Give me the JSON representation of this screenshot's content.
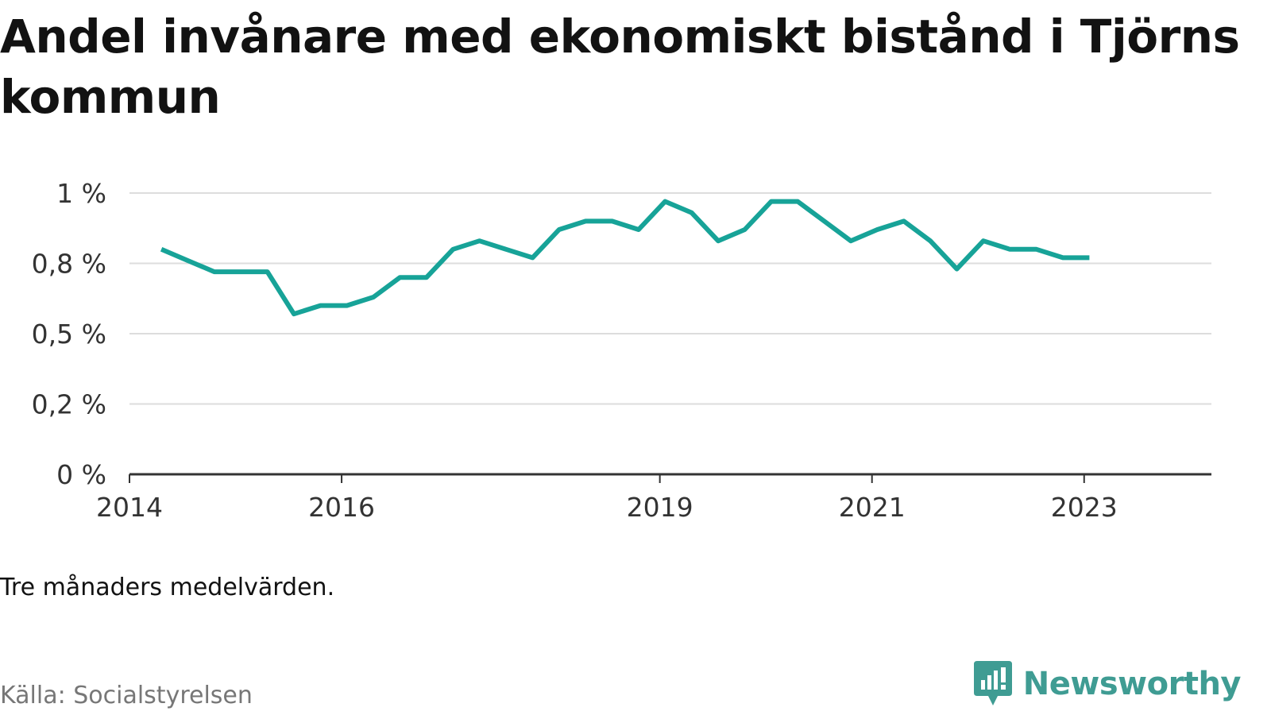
{
  "title": "Andel invånare med ekonomiskt bistånd i Tjörns kommun",
  "note": "Tre månaders medelvärden.",
  "source": "Källa: Socialstyrelsen",
  "brand": {
    "name": "Newsworthy",
    "color": "#3f9c93"
  },
  "colors": {
    "line": "#17a398",
    "grid": "#dddddd",
    "axis": "#333333"
  },
  "chart_data": {
    "type": "line",
    "title": "Andel invånare med ekonomiskt bistånd i Tjörns kommun",
    "xlabel": "",
    "ylabel": "",
    "grid": true,
    "legend": "none",
    "xlim": [
      2014.0,
      2024.2
    ],
    "ylim": [
      0,
      1.0
    ],
    "x_ticks": [
      {
        "value": 2014,
        "label": "2014"
      },
      {
        "value": 2016,
        "label": "2016"
      },
      {
        "value": 2019,
        "label": "2019"
      },
      {
        "value": 2021,
        "label": "2021"
      },
      {
        "value": 2023,
        "label": "2023"
      }
    ],
    "y_ticks": [
      {
        "value": 0,
        "label": "0 %"
      },
      {
        "value": 0.25,
        "label": "0,2 %"
      },
      {
        "value": 0.5,
        "label": "0,5 %"
      },
      {
        "value": 0.75,
        "label": "0,8 %"
      },
      {
        "value": 1.0,
        "label": "1 %"
      }
    ],
    "series": [
      {
        "x": [
          2014.3,
          2014.55,
          2014.8,
          2015.05,
          2015.3,
          2015.55,
          2015.8,
          2016.05,
          2016.3,
          2016.55,
          2016.8,
          2017.05,
          2017.3,
          2017.55,
          2017.8,
          2018.05,
          2018.3,
          2018.55,
          2018.8,
          2019.05,
          2019.3,
          2019.55,
          2019.8,
          2020.05,
          2020.3,
          2020.55,
          2020.8,
          2021.05,
          2021.3,
          2021.55,
          2021.8,
          2022.05,
          2022.3,
          2022.55,
          2022.8,
          2023.05
        ],
        "values": [
          0.8,
          0.76,
          0.72,
          0.72,
          0.72,
          0.57,
          0.6,
          0.6,
          0.63,
          0.7,
          0.7,
          0.8,
          0.83,
          0.8,
          0.77,
          0.87,
          0.9,
          0.9,
          0.87,
          0.97,
          0.93,
          0.83,
          0.87,
          0.97,
          0.97,
          0.9,
          0.83,
          0.87,
          0.9,
          0.83,
          0.73,
          0.83,
          0.8,
          0.8,
          0.77,
          0.77
        ]
      }
    ]
  }
}
